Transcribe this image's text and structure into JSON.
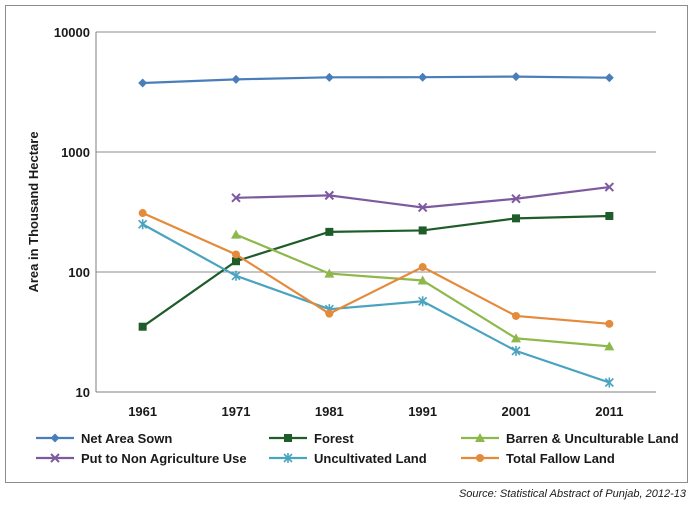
{
  "chart_data": {
    "type": "line",
    "title": "",
    "xlabel": "",
    "ylabel": "Area in Thousand Hectare",
    "yscale": "log",
    "ylim": [
      10,
      10000
    ],
    "y_ticks": [
      "10",
      "100",
      "1000",
      "10000"
    ],
    "categories": [
      "1961",
      "1971",
      "1981",
      "1991",
      "2001",
      "2011"
    ],
    "grid": "horizontal",
    "legend_position": "bottom",
    "series": [
      {
        "name": "Net Area Sown",
        "color": "#4a7ebb",
        "marker": "diamond",
        "values": [
          3760,
          4030,
          4190,
          4200,
          4250,
          4160
        ]
      },
      {
        "name": "Forest",
        "color": "#1e5c2a",
        "marker": "square",
        "values": [
          35,
          123,
          216,
          222,
          280,
          293
        ]
      },
      {
        "name": "Barren & Unculturable Land",
        "color": "#8db84a",
        "marker": "triangle",
        "values": [
          null,
          205,
          97,
          85,
          28,
          24
        ]
      },
      {
        "name": "Put to Non Agriculture Use",
        "color": "#7d5aa0",
        "marker": "x",
        "values": [
          null,
          415,
          435,
          345,
          408,
          510
        ]
      },
      {
        "name": "Uncultivated Land",
        "color": "#4aa3c0",
        "marker": "asterisk",
        "values": [
          250,
          93,
          49,
          57,
          22,
          12
        ]
      },
      {
        "name": "Total Fallow Land",
        "color": "#e58a3a",
        "marker": "circle",
        "values": [
          310,
          140,
          45,
          110,
          43,
          37
        ]
      }
    ]
  },
  "source_note": "Source: Statistical Abstract of Punjab, 2012-13"
}
